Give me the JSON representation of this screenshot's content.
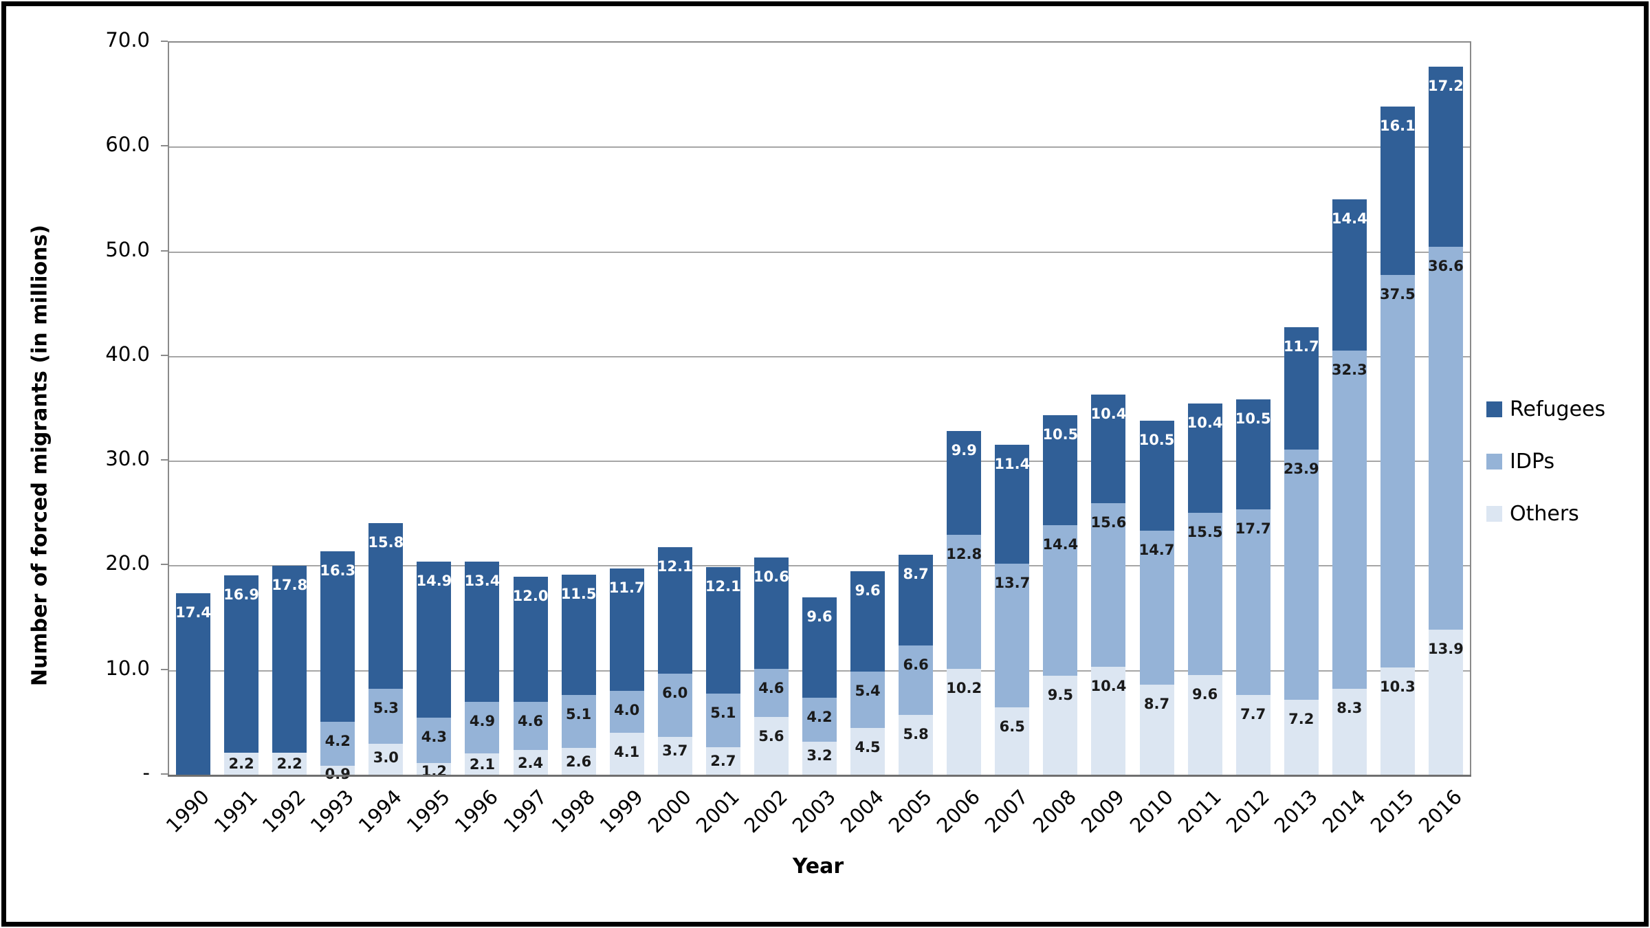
{
  "chart_data": {
    "type": "bar",
    "stacked": true,
    "xlabel": "Year",
    "ylabel": "Number of forced migrants (in millions)",
    "ylim": [
      0,
      70
    ],
    "ytick_step": 10,
    "ytick_labels": [
      "70.0",
      "60.0",
      "50.0",
      "40.0",
      "30.0",
      "20.0",
      "10.0",
      "-"
    ],
    "grid": true,
    "legend_position": "right",
    "categories": [
      "1990",
      "1991",
      "1992",
      "1993",
      "1994",
      "1995",
      "1996",
      "1997",
      "1998",
      "1999",
      "2000",
      "2001",
      "2002",
      "2003",
      "2004",
      "2005",
      "2006",
      "2007",
      "2008",
      "2009",
      "2010",
      "2011",
      "2012",
      "2013",
      "2014",
      "2015",
      "2016"
    ],
    "series": [
      {
        "name": "Refugees",
        "color": "#305F97",
        "label_color": "#FFFFFF",
        "values": [
          "17.4",
          "16.9",
          "17.8",
          "16.3",
          "15.8",
          "14.9",
          "13.4",
          "12.0",
          "11.5",
          "11.7",
          "12.1",
          "12.1",
          "10.6",
          "9.6",
          "9.6",
          "8.7",
          "9.9",
          "11.4",
          "10.5",
          "10.4",
          "10.5",
          "10.4",
          "10.5",
          "11.7",
          "14.4",
          "16.1",
          "17.2"
        ]
      },
      {
        "name": "IDPs",
        "color": "#95B3D7",
        "label_color": "#1A1A1A",
        "values": [
          null,
          null,
          null,
          "4.2",
          "5.3",
          "4.3",
          "4.9",
          "4.6",
          "5.1",
          "4.0",
          "6.0",
          "5.1",
          "4.6",
          "4.2",
          "5.4",
          "6.6",
          "12.8",
          "13.7",
          "14.4",
          "15.6",
          "14.7",
          "15.5",
          "17.7",
          "23.9",
          "32.3",
          "37.5",
          "36.6"
        ]
      },
      {
        "name": "Others",
        "color": "#DCE6F2",
        "label_color": "#1A1A1A",
        "values": [
          null,
          "2.2",
          "2.2",
          "0.9",
          "3.0",
          "1.2",
          "2.1",
          "2.4",
          "2.6",
          "4.1",
          "3.7",
          "2.7",
          "5.6",
          "3.2",
          "4.5",
          "5.8",
          "10.2",
          "6.5",
          "9.5",
          "10.4",
          "8.7",
          "9.6",
          "7.7",
          "7.2",
          "8.3",
          "10.3",
          "13.9"
        ]
      }
    ],
    "colors": {
      "gridline": "#A6A6A6",
      "plot_border": "#8A8A8A",
      "axis_line": "#6F6F6F",
      "outer_border": "#000000"
    }
  }
}
